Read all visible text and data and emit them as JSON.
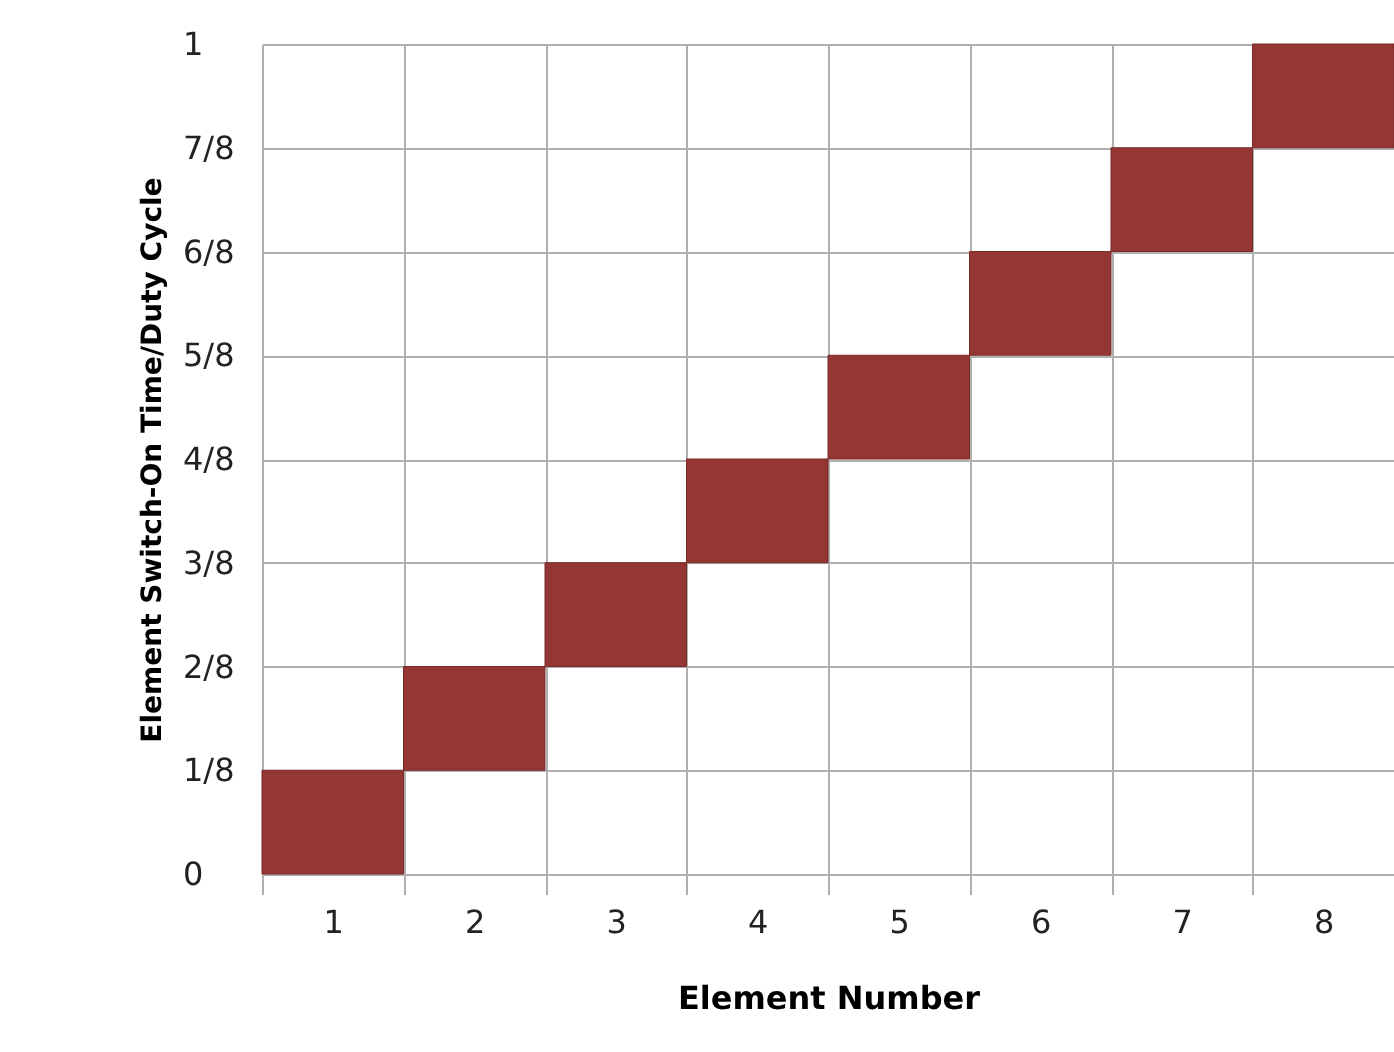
{
  "chart_data": {
    "type": "bar",
    "xlabel": "Element Number",
    "ylabel": "Element Switch-On Time/Duty Cycle",
    "categories": [
      "1",
      "2",
      "3",
      "4",
      "5",
      "6",
      "7",
      "8"
    ],
    "values": [
      0.125,
      0.125,
      0.125,
      0.125,
      0.125,
      0.125,
      0.125,
      0.125
    ],
    "base": [
      0,
      0.125,
      0.25,
      0.375,
      0.5,
      0.625,
      0.75,
      0.875
    ],
    "color": "#943634",
    "ylim": [
      0,
      1
    ],
    "yticks": [
      0,
      {
        "value": 0.125,
        "label": "1/8"
      },
      {
        "value": 0.25,
        "label": "2/8"
      },
      {
        "value": 0.375,
        "label": "3/8"
      },
      {
        "value": 0.5,
        "label": "4/8"
      },
      {
        "value": 0.625,
        "label": "5/8"
      },
      {
        "value": 0.75,
        "label": "6/8"
      },
      {
        "value": 0.875,
        "label": "7/8"
      },
      1
    ],
    "grid": true
  }
}
